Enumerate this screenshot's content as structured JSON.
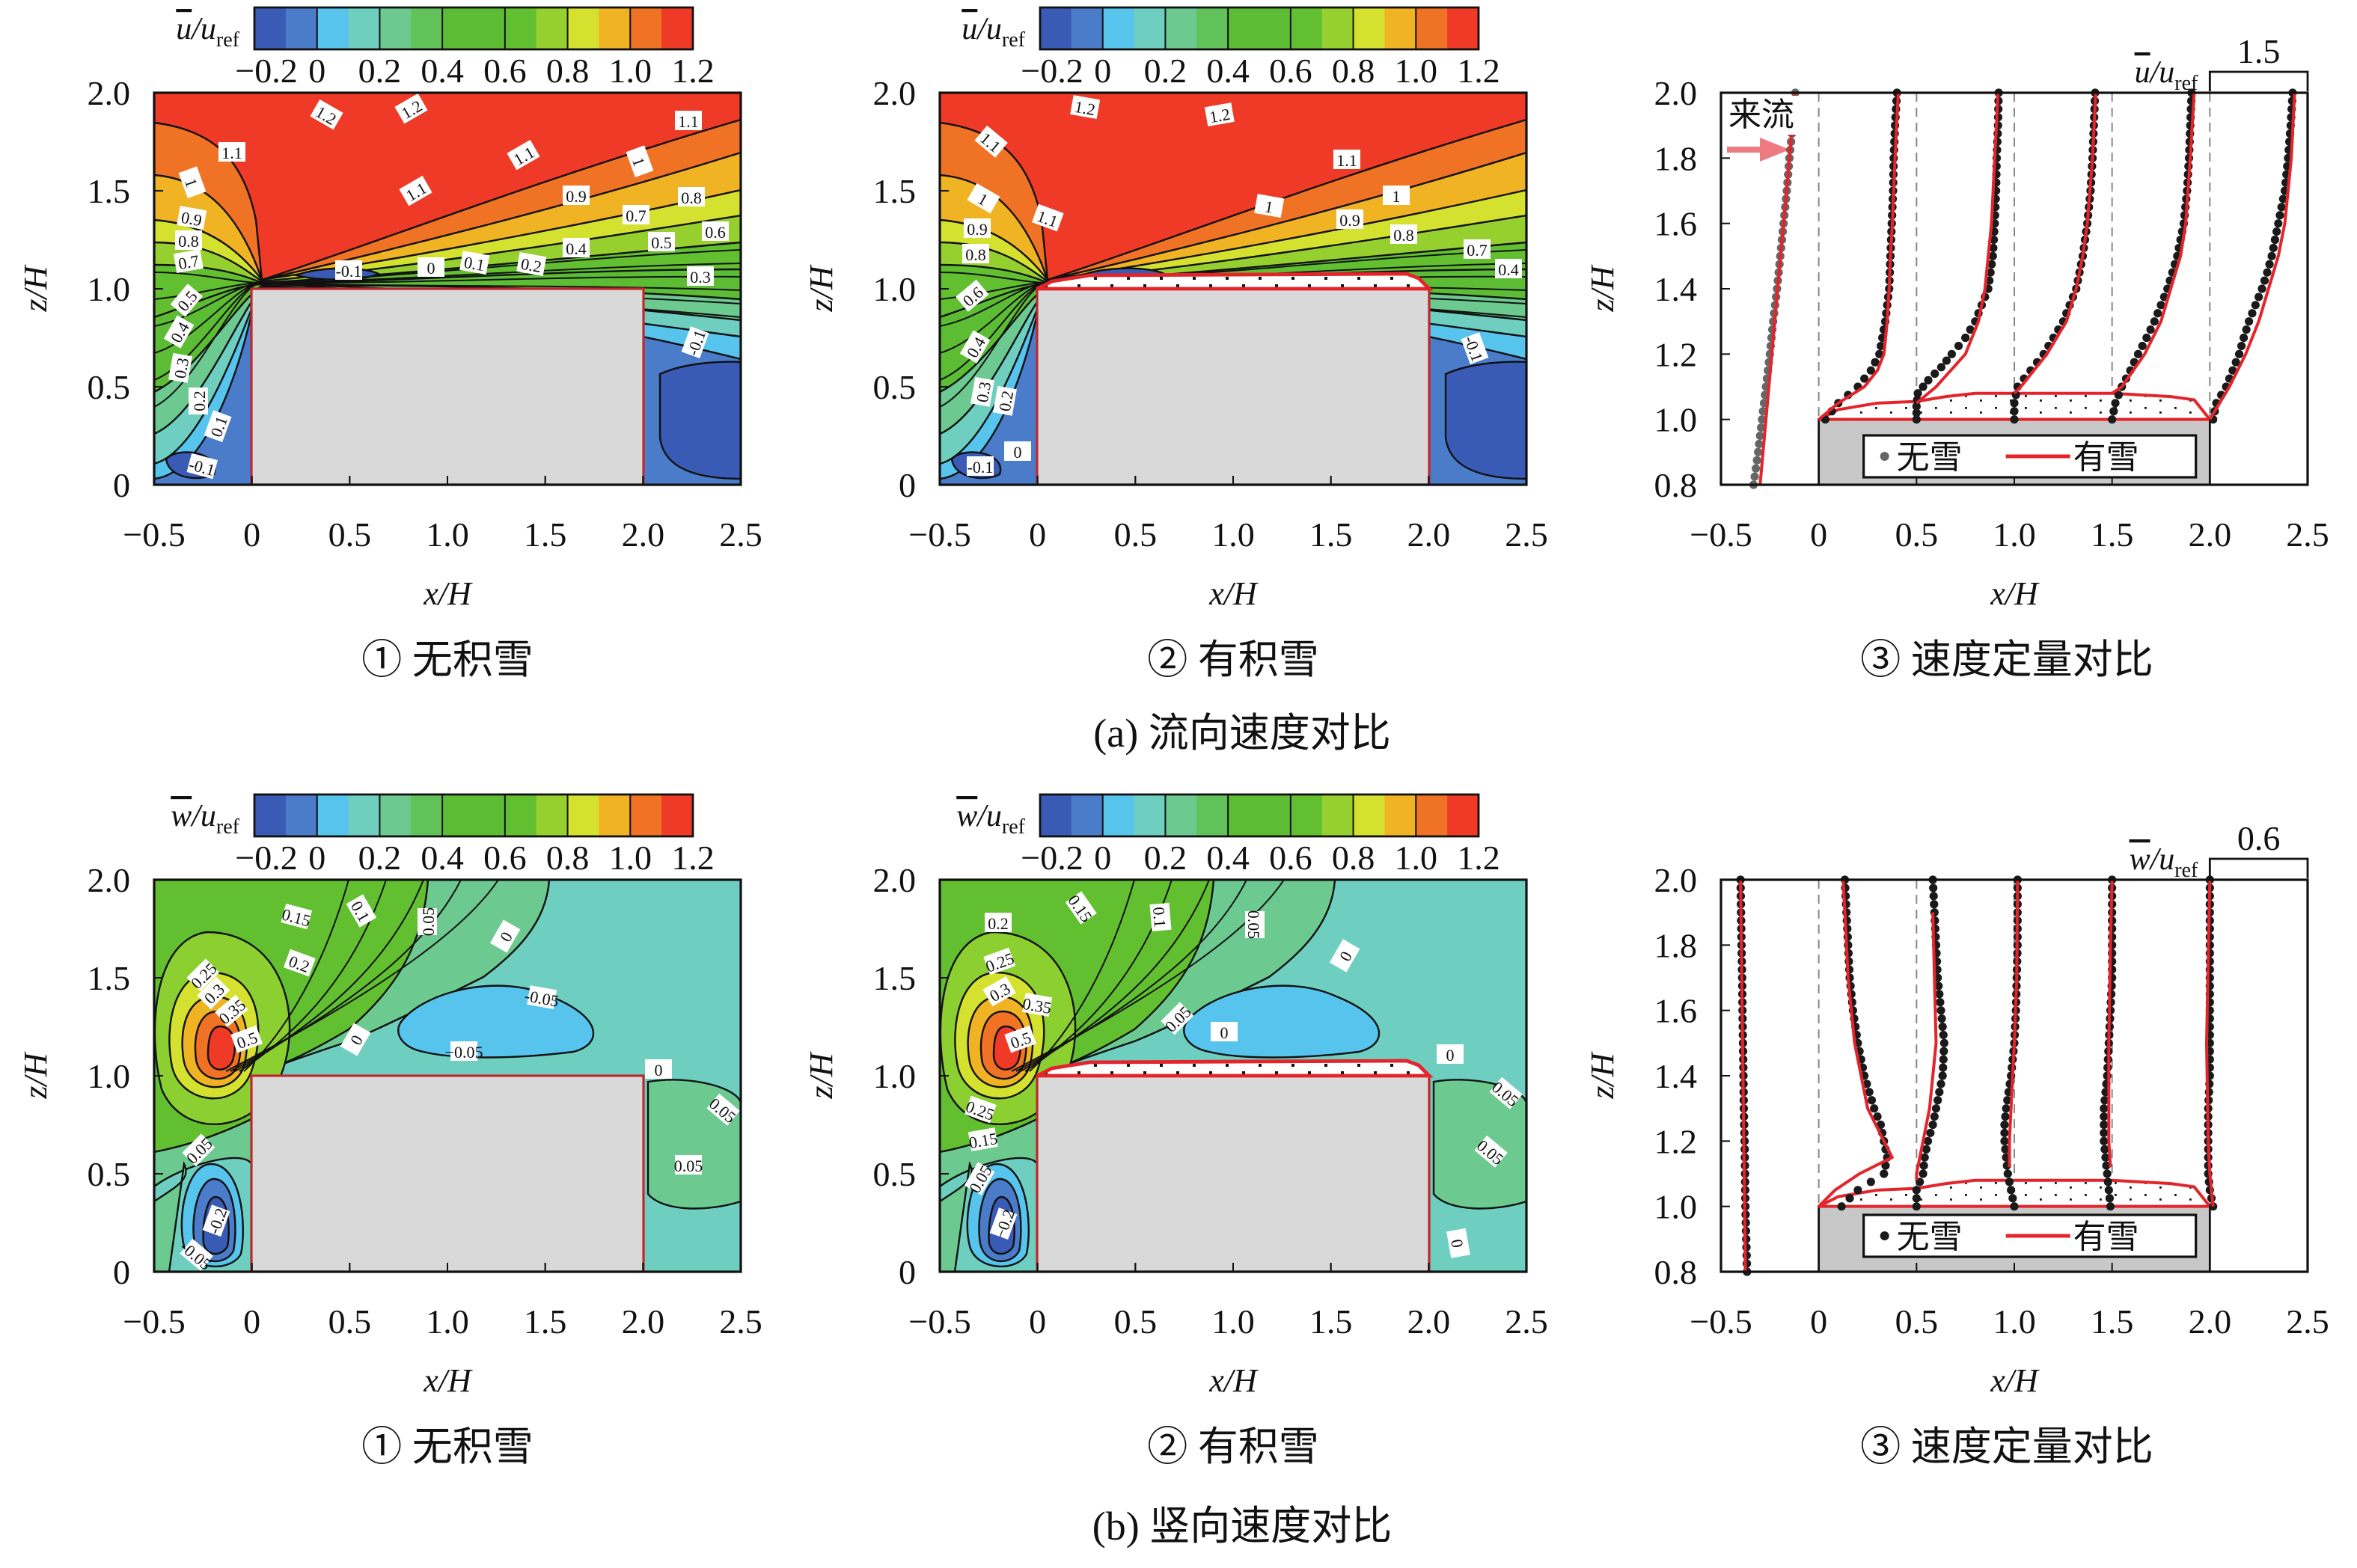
{
  "figure": {
    "row_a_caption": "(a) 流向速度对比",
    "row_b_caption": "(b) 竖向速度对比"
  },
  "chart_data": [
    {
      "type": "heatmap",
      "caption": "① 无积雪",
      "xlabel": "x/H",
      "ylabel": "z/H",
      "xlim": [
        -0.5,
        2.5
      ],
      "ylim": [
        0,
        2.0
      ],
      "xticks": [
        "−0.5",
        "0",
        "0.5",
        "1.0",
        "1.5",
        "2.0",
        "2.5"
      ],
      "yticks": [
        "0",
        "0.5",
        "1.0",
        "1.5",
        "2.0"
      ],
      "colorbar": {
        "var": "u",
        "slash": "/",
        "denom": "u",
        "sub": "ref",
        "ticks": [
          "−0.2",
          "0",
          "0.2",
          "0.4",
          "0.6",
          "0.8",
          "1.0",
          "1.2"
        ],
        "colors": [
          "#3a5bb5",
          "#4a7cc9",
          "#56c4ec",
          "#6ecfc0",
          "#6cc98f",
          "#62c25a",
          "#5cbd35",
          "#5cbd35",
          "#62c030",
          "#96d02f",
          "#d4e22f",
          "#f0b323",
          "#f07325",
          "#ee3a26"
        ]
      },
      "building": {
        "x": [
          0,
          2.0
        ],
        "z": [
          0,
          1.0
        ]
      },
      "snow": false,
      "contour_labels": [
        "1.2",
        "1.2",
        "1.1",
        "1.1",
        "1.1",
        "1.1",
        "1",
        "1",
        "0.9",
        "0.9",
        "0.8",
        "0.8",
        "0.7",
        "0.7",
        "0.6",
        "0.5",
        "0.5",
        "0.4",
        "0.4",
        "0.3",
        "0.3",
        "0.2",
        "0.2",
        "0.1",
        "0.1",
        "0",
        "-0.1",
        "-0.1",
        "-0.1"
      ]
    },
    {
      "type": "heatmap",
      "caption": "② 有积雪",
      "xlabel": "x/H",
      "ylabel": "z/H",
      "xlim": [
        -0.5,
        2.5
      ],
      "ylim": [
        0,
        2.0
      ],
      "xticks": [
        "−0.5",
        "0",
        "0.5",
        "1.0",
        "1.5",
        "2.0",
        "2.5"
      ],
      "yticks": [
        "0",
        "0.5",
        "1.0",
        "1.5",
        "2.0"
      ],
      "colorbar": {
        "var": "u",
        "slash": "/",
        "denom": "u",
        "sub": "ref",
        "ticks": [
          "−0.2",
          "0",
          "0.2",
          "0.4",
          "0.6",
          "0.8",
          "1.0",
          "1.2"
        ],
        "colors": [
          "#3a5bb5",
          "#4a7cc9",
          "#56c4ec",
          "#6ecfc0",
          "#6cc98f",
          "#62c25a",
          "#5cbd35",
          "#5cbd35",
          "#62c030",
          "#96d02f",
          "#d4e22f",
          "#f0b323",
          "#f07325",
          "#ee3a26"
        ]
      },
      "building": {
        "x": [
          0,
          2.0
        ],
        "z": [
          0,
          1.0
        ]
      },
      "snow": true,
      "contour_labels": [
        "1.2",
        "1.2",
        "1.1",
        "1.1",
        "1",
        "1",
        "1",
        "1.1",
        "0.9",
        "0.9",
        "0.8",
        "0.8",
        "0.7",
        "0.4",
        "0.6",
        "0.4",
        "0.3",
        "0.2",
        "0",
        "-0.1",
        "-0.1"
      ]
    },
    {
      "type": "line",
      "caption": "③ 速度定量对比",
      "xlabel": "x/H",
      "ylabel": "z/H",
      "xlim": [
        -0.5,
        2.5
      ],
      "ylim": [
        0.8,
        2.0
      ],
      "xticks": [
        "−0.5",
        "0",
        "0.5",
        "1.0",
        "1.5",
        "2.0",
        "2.5"
      ],
      "yticks": [
        "0.8",
        "1.0",
        "1.2",
        "1.4",
        "1.6",
        "1.8",
        "2.0"
      ],
      "scale": {
        "var": "u",
        "slash": "/",
        "denom": "u",
        "sub": "ref",
        "value": "1.5",
        "value_num": 1.5,
        "span_xH": 0.5
      },
      "inflow_label": "来流",
      "legend": [
        "无雪",
        "有雪"
      ],
      "stations": [
        {
          "x": -0.5,
          "inflow": true,
          "z_no_snow": [
            0.8,
            0.9,
            1.0,
            1.1,
            1.2,
            1.3,
            1.4,
            1.5,
            1.6,
            1.7,
            1.8,
            1.9,
            2.0
          ],
          "no_snow": [
            0.5,
            0.57,
            0.63,
            0.69,
            0.75,
            0.8,
            0.86,
            0.91,
            0.96,
            1.01,
            1.05,
            1.1,
            1.14
          ],
          "z_snow": [
            0.8,
            2.0
          ],
          "snow": [
            0.6,
            1.14
          ]
        },
        {
          "x": 0.0,
          "z_no_snow": [
            1.0,
            1.05,
            1.1,
            1.15,
            1.2,
            1.3,
            1.4,
            1.5,
            1.6,
            1.7,
            1.8,
            1.9,
            2.0
          ],
          "no_snow": [
            0.1,
            0.3,
            0.6,
            0.8,
            0.93,
            1.02,
            1.08,
            1.1,
            1.12,
            1.14,
            1.15,
            1.17,
            1.2
          ],
          "z_snow": [
            1.0,
            1.05,
            1.1,
            1.15,
            1.2,
            1.3,
            1.4,
            1.5,
            1.6,
            1.8,
            2.0
          ],
          "snow": [
            0.0,
            0.3,
            0.7,
            0.9,
            1.0,
            1.05,
            1.08,
            1.1,
            1.13,
            1.17,
            1.22
          ]
        },
        {
          "x": 0.5,
          "z_no_snow": [
            1.0,
            1.04,
            1.08,
            1.12,
            1.16,
            1.2,
            1.25,
            1.3,
            1.4,
            1.5,
            1.6,
            1.7,
            1.8,
            1.9,
            2.0
          ],
          "no_snow": [
            0.0,
            0.0,
            0.02,
            0.18,
            0.38,
            0.54,
            0.75,
            0.9,
            1.1,
            1.17,
            1.2,
            1.22,
            1.23,
            1.25,
            1.26
          ],
          "z_snow": [
            1.05,
            1.1,
            1.2,
            1.3,
            1.4,
            1.5,
            1.6,
            1.8,
            2.0
          ],
          "snow": [
            0.0,
            0.3,
            0.75,
            0.95,
            1.05,
            1.1,
            1.15,
            1.2,
            1.25
          ]
        },
        {
          "x": 1.0,
          "z_no_snow": [
            1.0,
            1.05,
            1.1,
            1.15,
            1.2,
            1.25,
            1.3,
            1.4,
            1.5,
            1.6,
            1.7,
            1.8,
            1.9,
            2.0
          ],
          "no_snow": [
            0.0,
            0.0,
            0.05,
            0.25,
            0.45,
            0.6,
            0.75,
            0.95,
            1.05,
            1.12,
            1.17,
            1.2,
            1.22,
            1.24
          ],
          "z_snow": [
            1.08,
            1.1,
            1.2,
            1.3,
            1.4,
            1.5,
            1.6,
            1.8,
            2.0
          ],
          "snow": [
            0.0,
            0.1,
            0.5,
            0.8,
            0.95,
            1.05,
            1.12,
            1.2,
            1.25
          ]
        },
        {
          "x": 1.5,
          "z_no_snow": [
            1.0,
            1.05,
            1.1,
            1.15,
            1.2,
            1.25,
            1.3,
            1.4,
            1.5,
            1.6,
            1.7,
            1.8,
            1.9,
            2.0
          ],
          "no_snow": [
            0.0,
            0.05,
            0.15,
            0.28,
            0.4,
            0.53,
            0.65,
            0.85,
            1.0,
            1.1,
            1.15,
            1.18,
            1.2,
            1.22
          ],
          "z_snow": [
            1.08,
            1.1,
            1.2,
            1.3,
            1.4,
            1.5,
            1.6,
            1.8,
            2.0
          ],
          "snow": [
            0.0,
            0.15,
            0.5,
            0.75,
            0.9,
            1.05,
            1.13,
            1.2,
            1.26
          ]
        },
        {
          "x": 2.0,
          "z_no_snow": [
            1.0,
            1.05,
            1.1,
            1.15,
            1.2,
            1.25,
            1.3,
            1.35,
            1.4,
            1.45,
            1.5,
            1.6,
            1.7,
            1.8,
            1.9,
            2.0
          ],
          "no_snow": [
            0.05,
            0.1,
            0.25,
            0.35,
            0.45,
            0.52,
            0.6,
            0.7,
            0.8,
            0.88,
            0.95,
            1.05,
            1.15,
            1.2,
            1.24,
            1.27
          ],
          "z_snow": [
            1.0,
            1.05,
            1.1,
            1.2,
            1.3,
            1.4,
            1.5,
            1.6,
            1.8,
            2.0
          ],
          "snow": [
            0.0,
            0.15,
            0.3,
            0.55,
            0.75,
            0.9,
            1.05,
            1.15,
            1.25,
            1.3
          ]
        }
      ]
    },
    {
      "type": "heatmap",
      "caption": "① 无积雪",
      "xlabel": "x/H",
      "ylabel": "z/H",
      "xlim": [
        -0.5,
        2.5
      ],
      "ylim": [
        0,
        2.0
      ],
      "xticks": [
        "−0.5",
        "0",
        "0.5",
        "1.0",
        "1.5",
        "2.0",
        "2.5"
      ],
      "yticks": [
        "0",
        "0.5",
        "1.0",
        "1.5",
        "2.0"
      ],
      "colorbar": {
        "var": "w",
        "slash": "/",
        "denom": "u",
        "sub": "ref",
        "ticks": [
          "−0.2",
          "0",
          "0.2",
          "0.4",
          "0.6",
          "0.8",
          "1.0",
          "1.2"
        ],
        "colors": [
          "#3a5bb5",
          "#4a7cc9",
          "#56c4ec",
          "#6ecfc0",
          "#6cc98f",
          "#62c25a",
          "#5cbd35",
          "#5cbd35",
          "#62c030",
          "#96d02f",
          "#d4e22f",
          "#f0b323",
          "#f07325",
          "#ee3a26"
        ]
      },
      "building": {
        "x": [
          0,
          2.0
        ],
        "z": [
          0,
          1.0
        ]
      },
      "snow": false,
      "contour_labels": [
        "0.15",
        "0.1",
        "0.05",
        "0",
        "0.25",
        "0.2",
        "0.3",
        "0.35",
        "0.5",
        "0",
        "-0.05",
        "−0.05",
        "0",
        "0.05",
        "0.05",
        "0.05",
        "-0.2",
        "-0.05"
      ]
    },
    {
      "type": "heatmap",
      "caption": "② 有积雪",
      "xlabel": "x/H",
      "ylabel": "z/H",
      "xlim": [
        -0.5,
        2.5
      ],
      "ylim": [
        0,
        2.0
      ],
      "xticks": [
        "−0.5",
        "0",
        "0.5",
        "1.0",
        "1.5",
        "2.0",
        "2.5"
      ],
      "yticks": [
        "0",
        "0.5",
        "1.0",
        "1.5",
        "2.0"
      ],
      "colorbar": {
        "var": "w",
        "slash": "/",
        "denom": "u",
        "sub": "ref",
        "ticks": [
          "−0.2",
          "0",
          "0.2",
          "0.4",
          "0.6",
          "0.8",
          "1.0",
          "1.2"
        ],
        "colors": [
          "#3a5bb5",
          "#4a7cc9",
          "#56c4ec",
          "#6ecfc0",
          "#6cc98f",
          "#62c25a",
          "#5cbd35",
          "#5cbd35",
          "#62c030",
          "#96d02f",
          "#d4e22f",
          "#f0b323",
          "#f07325",
          "#ee3a26"
        ]
      },
      "building": {
        "x": [
          0,
          2.0
        ],
        "z": [
          0,
          1.0
        ]
      },
      "snow": true,
      "contour_labels": [
        "0.15",
        "0.1",
        "0.05",
        "0.2",
        "0",
        "0.25",
        "0.3",
        "0.35",
        "0.05",
        "0",
        "0.5",
        "0",
        "0.05",
        "0.25",
        "0.15",
        "0.05",
        "0.05",
        "−0.2",
        "0"
      ]
    },
    {
      "type": "line",
      "caption": "③ 速度定量对比",
      "xlabel": "x/H",
      "ylabel": "z/H",
      "xlim": [
        -0.5,
        2.5
      ],
      "ylim": [
        0.8,
        2.0
      ],
      "xticks": [
        "−0.5",
        "0",
        "0.5",
        "1.0",
        "1.5",
        "2.0",
        "2.5"
      ],
      "yticks": [
        "0.8",
        "1.0",
        "1.2",
        "1.4",
        "1.6",
        "1.8",
        "2.0"
      ],
      "scale": {
        "var": "w",
        "slash": "/",
        "denom": "u",
        "sub": "ref",
        "value": "0.6",
        "value_num": 0.6,
        "span_xH": 0.5
      },
      "legend": [
        "无雪",
        "有雪"
      ],
      "stations": [
        {
          "x": -0.4,
          "z_no_snow": [
            0.8,
            0.9,
            1.0,
            1.1,
            1.2,
            1.3,
            1.4,
            1.5,
            1.6,
            1.7,
            1.8,
            1.9,
            2.0
          ],
          "no_snow": [
            0.04,
            0.035,
            0.03,
            0.028,
            0.025,
            0.02,
            0.018,
            0.015,
            0.012,
            0.01,
            0.006,
            0.003,
            0.0
          ],
          "z_snow": [
            0.8,
            2.0
          ],
          "snow": [
            0.03,
            0.0
          ]
        },
        {
          "x": 0.0,
          "z_no_snow": [
            1.0,
            1.05,
            1.1,
            1.15,
            1.2,
            1.25,
            1.3,
            1.4,
            1.5,
            1.6,
            1.7,
            1.8,
            1.9,
            2.0
          ],
          "no_snow": [
            0.14,
            0.24,
            0.4,
            0.42,
            0.4,
            0.38,
            0.34,
            0.28,
            0.24,
            0.21,
            0.19,
            0.18,
            0.17,
            0.16
          ],
          "z_snow": [
            1.0,
            1.05,
            1.1,
            1.15,
            1.2,
            1.3,
            1.5,
            1.7,
            2.0
          ],
          "snow": [
            0.0,
            0.1,
            0.25,
            0.45,
            0.4,
            0.3,
            0.22,
            0.18,
            0.15
          ]
        },
        {
          "x": 0.5,
          "z_no_snow": [
            1.0,
            1.05,
            1.1,
            1.15,
            1.2,
            1.25,
            1.3,
            1.4,
            1.5,
            1.6,
            1.7,
            1.8,
            1.9,
            2.0
          ],
          "no_snow": [
            0.0,
            0.0,
            0.04,
            0.05,
            0.07,
            0.1,
            0.12,
            0.16,
            0.17,
            0.15,
            0.13,
            0.12,
            0.11,
            0.1
          ],
          "z_snow": [
            1.08,
            1.1,
            1.2,
            1.3,
            1.5,
            1.7,
            1.9
          ],
          "snow": [
            0.0,
            0.0,
            0.04,
            0.08,
            0.12,
            0.11,
            0.1
          ]
        },
        {
          "x": 1.0,
          "z_no_snow": [
            1.0,
            1.05,
            1.1,
            1.15,
            1.2,
            1.25,
            1.3,
            1.4,
            1.5,
            1.6,
            1.7,
            1.8,
            1.9,
            2.0
          ],
          "no_snow": [
            0.0,
            -0.02,
            -0.04,
            -0.05,
            -0.06,
            -0.06,
            -0.05,
            -0.02,
            0.0,
            0.01,
            0.015,
            0.02,
            0.02,
            0.02
          ],
          "z_snow": [
            1.12,
            1.2,
            1.3,
            1.5,
            1.7,
            2.0
          ],
          "snow": [
            -0.03,
            -0.03,
            -0.02,
            0.0,
            0.015,
            0.02
          ]
        },
        {
          "x": 1.5,
          "z_no_snow": [
            1.0,
            1.05,
            1.1,
            1.15,
            1.2,
            1.25,
            1.3,
            1.4,
            1.5,
            1.6,
            1.7,
            1.8,
            1.9,
            2.0
          ],
          "no_snow": [
            -0.01,
            -0.02,
            -0.03,
            -0.04,
            -0.05,
            -0.05,
            -0.05,
            -0.03,
            -0.02,
            -0.01,
            0.0,
            0.0,
            0.0,
            0.0
          ],
          "z_snow": [
            1.12,
            1.2,
            1.5,
            1.8,
            2.0
          ],
          "snow": [
            -0.01,
            -0.02,
            -0.02,
            -0.01,
            0.0
          ]
        },
        {
          "x": 2.0,
          "z_no_snow": [
            1.0,
            1.05,
            1.1,
            1.15,
            1.2,
            1.3,
            1.4,
            1.5,
            1.6,
            1.7,
            1.8,
            1.9,
            2.0
          ],
          "no_snow": [
            0.02,
            0.0,
            -0.01,
            -0.01,
            -0.01,
            -0.01,
            0.0,
            0.0,
            0.0,
            0.0,
            0.0,
            0.0,
            0.0
          ],
          "z_snow": [
            1.0,
            1.1,
            1.2,
            1.5,
            2.0
          ],
          "snow": [
            0.02,
            0.0,
            -0.01,
            -0.02,
            0.0
          ]
        }
      ]
    }
  ]
}
